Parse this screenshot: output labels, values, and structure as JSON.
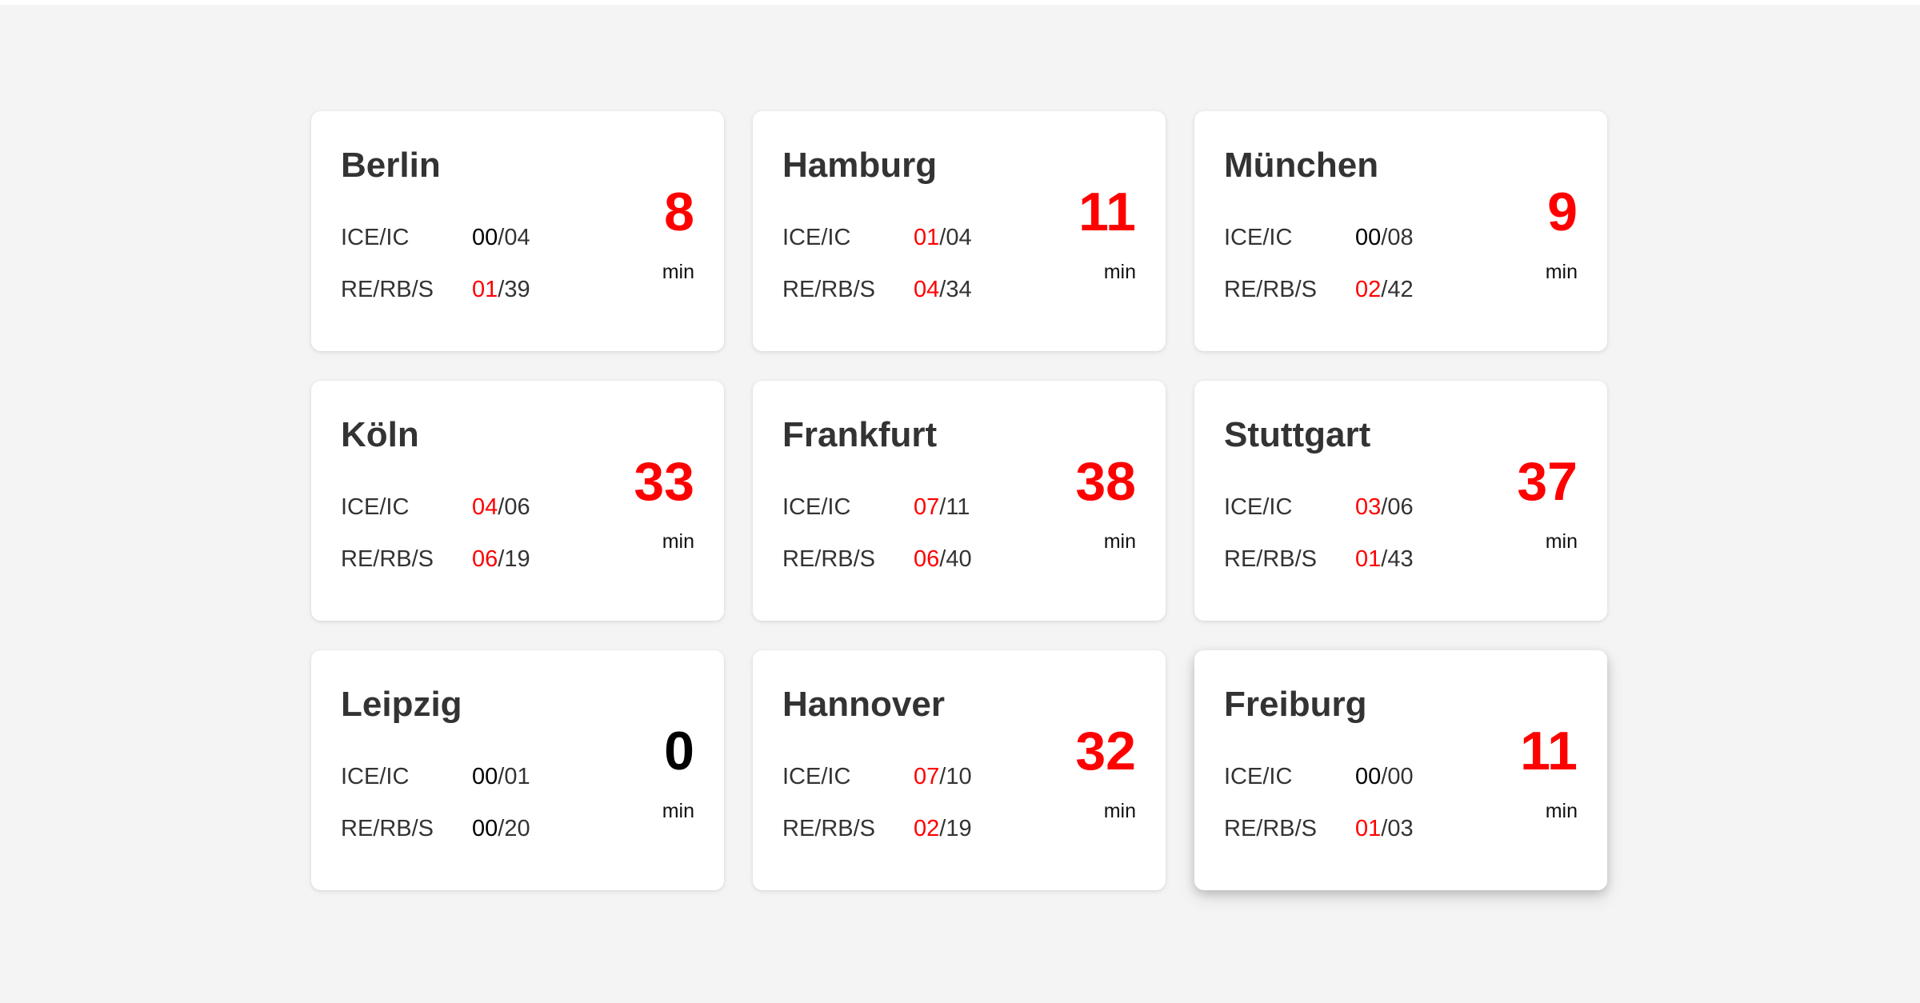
{
  "colors": {
    "background": "#f4f4f4",
    "card": "#ffffff",
    "delay_alert": "#ff0000",
    "delay_ok": "#000000",
    "text": "#333333"
  },
  "cards": [
    {
      "city": "Berlin",
      "rows": [
        {
          "label": "ICE/IC",
          "delayed": "00",
          "slash": "/",
          "total": "04"
        },
        {
          "label": "RE/RB/S",
          "delayed": "01",
          "slash": "/",
          "total": "39"
        }
      ],
      "delay": "8",
      "unit": "min"
    },
    {
      "city": "Hamburg",
      "rows": [
        {
          "label": "ICE/IC",
          "delayed": "01",
          "slash": "/",
          "total": "04"
        },
        {
          "label": "RE/RB/S",
          "delayed": "04",
          "slash": "/",
          "total": "34"
        }
      ],
      "delay": "11",
      "unit": "min"
    },
    {
      "city": "München",
      "rows": [
        {
          "label": "ICE/IC",
          "delayed": "00",
          "slash": "/",
          "total": "08"
        },
        {
          "label": "RE/RB/S",
          "delayed": "02",
          "slash": "/",
          "total": "42"
        }
      ],
      "delay": "9",
      "unit": "min"
    },
    {
      "city": "Köln",
      "rows": [
        {
          "label": "ICE/IC",
          "delayed": "04",
          "slash": "/",
          "total": "06"
        },
        {
          "label": "RE/RB/S",
          "delayed": "06",
          "slash": "/",
          "total": "19"
        }
      ],
      "delay": "33",
      "unit": "min"
    },
    {
      "city": "Frankfurt",
      "rows": [
        {
          "label": "ICE/IC",
          "delayed": "07",
          "slash": "/",
          "total": "11"
        },
        {
          "label": "RE/RB/S",
          "delayed": "06",
          "slash": "/",
          "total": "40"
        }
      ],
      "delay": "38",
      "unit": "min"
    },
    {
      "city": "Stuttgart",
      "rows": [
        {
          "label": "ICE/IC",
          "delayed": "03",
          "slash": "/",
          "total": "06"
        },
        {
          "label": "RE/RB/S",
          "delayed": "01",
          "slash": "/",
          "total": "43"
        }
      ],
      "delay": "37",
      "unit": "min"
    },
    {
      "city": "Leipzig",
      "rows": [
        {
          "label": "ICE/IC",
          "delayed": "00",
          "slash": "/",
          "total": "01"
        },
        {
          "label": "RE/RB/S",
          "delayed": "00",
          "slash": "/",
          "total": "20"
        }
      ],
      "delay": "0",
      "unit": "min"
    },
    {
      "city": "Hannover",
      "rows": [
        {
          "label": "ICE/IC",
          "delayed": "07",
          "slash": "/",
          "total": "10"
        },
        {
          "label": "RE/RB/S",
          "delayed": "02",
          "slash": "/",
          "total": "19"
        }
      ],
      "delay": "32",
      "unit": "min"
    },
    {
      "city": "Freiburg",
      "rows": [
        {
          "label": "ICE/IC",
          "delayed": "00",
          "slash": "/",
          "total": "00"
        },
        {
          "label": "RE/RB/S",
          "delayed": "01",
          "slash": "/",
          "total": "03"
        }
      ],
      "delay": "11",
      "unit": "min"
    }
  ]
}
